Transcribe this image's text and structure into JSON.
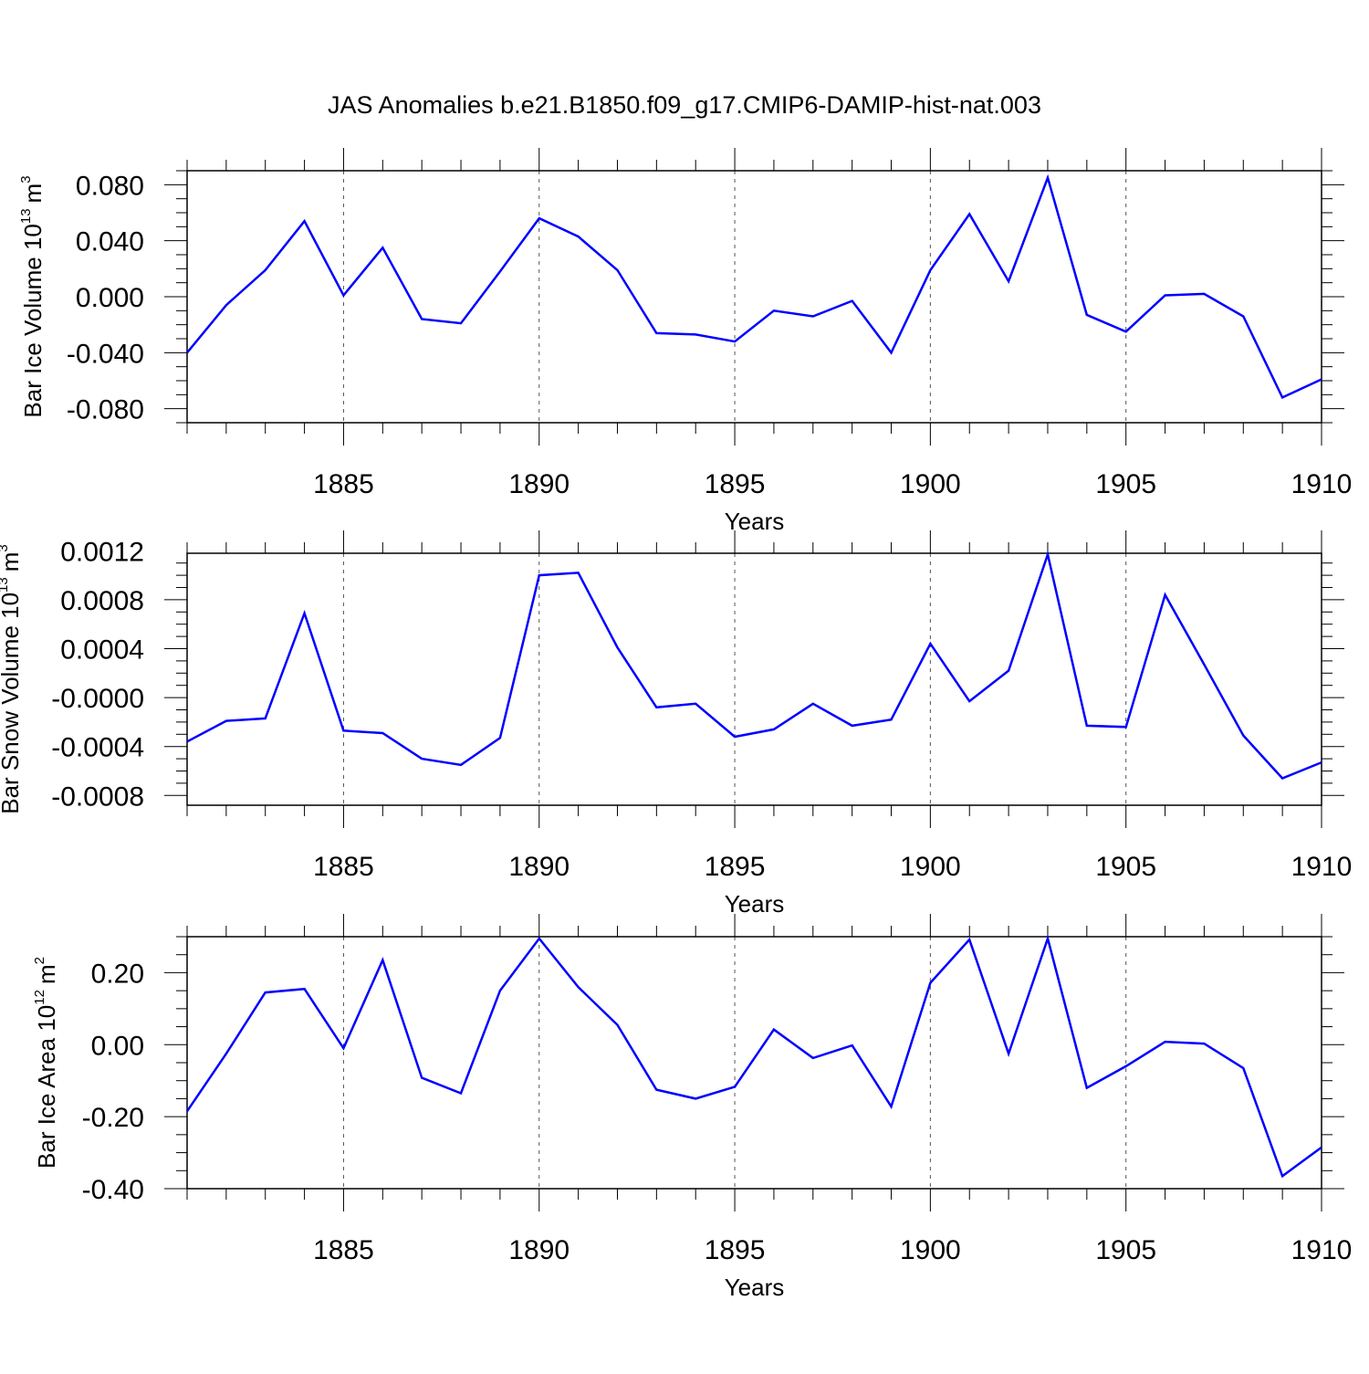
{
  "chart_data": [
    {
      "type": "line",
      "title": "JAS Anomalies b.e21.B1850.f09_g17.CMIP6-DAMIP-hist-nat.003",
      "xlabel": "Years",
      "ylabel": "Bar Ice Volume 10",
      "ylabel_exp": "13",
      "ylabel_unit": "m",
      "ylabel_unit_exp": "3",
      "xlim": [
        1881,
        1910
      ],
      "ylim": [
        -0.09,
        0.09
      ],
      "xticks": [
        1885,
        1890,
        1895,
        1900,
        1905,
        1910
      ],
      "xtick_labels": [
        "1885",
        "1890",
        "1895",
        "1900",
        "1905",
        "1910"
      ],
      "yticks": [
        -0.08,
        -0.04,
        0.0,
        0.04,
        0.08
      ],
      "ytick_labels": [
        "-0.080",
        "-0.040",
        "0.000",
        "0.040",
        "0.080"
      ],
      "grid": "vertical dashed at major x ticks",
      "line_color": "#0000ff",
      "series": [
        {
          "name": "Bar Ice Volume",
          "x": [
            1881,
            1882,
            1883,
            1884,
            1885,
            1886,
            1887,
            1888,
            1889,
            1890,
            1891,
            1892,
            1893,
            1894,
            1895,
            1896,
            1897,
            1898,
            1899,
            1900,
            1901,
            1902,
            1903,
            1904,
            1905,
            1906,
            1907,
            1908,
            1909,
            1910
          ],
          "values": [
            -0.04,
            -0.006,
            0.019,
            0.054,
            0.001,
            0.035,
            -0.016,
            -0.019,
            0.018,
            0.056,
            0.043,
            0.019,
            -0.026,
            -0.027,
            -0.032,
            -0.01,
            -0.014,
            -0.003,
            -0.04,
            0.019,
            0.059,
            0.011,
            0.085,
            -0.013,
            -0.025,
            0.001,
            0.002,
            -0.014,
            -0.072,
            -0.059
          ]
        }
      ]
    },
    {
      "type": "line",
      "xlabel": "Years",
      "ylabel": "Bar Snow Volume 10",
      "ylabel_exp": "13",
      "ylabel_unit": "m",
      "ylabel_unit_exp": "3",
      "xlim": [
        1881,
        1910
      ],
      "ylim": [
        -0.00088,
        0.00118
      ],
      "xticks": [
        1885,
        1890,
        1895,
        1900,
        1905,
        1910
      ],
      "xtick_labels": [
        "1885",
        "1890",
        "1895",
        "1900",
        "1905",
        "1910"
      ],
      "yticks": [
        -0.0008,
        -0.0004,
        0.0,
        0.0004,
        0.0008,
        0.0012
      ],
      "ytick_labels": [
        "-0.0008",
        "-0.0004",
        "-0.0000",
        "0.0004",
        "0.0008",
        "0.0012"
      ],
      "grid": "vertical dashed at major x ticks",
      "line_color": "#0000ff",
      "series": [
        {
          "name": "Bar Snow Volume",
          "x": [
            1881,
            1882,
            1883,
            1884,
            1885,
            1886,
            1887,
            1888,
            1889,
            1890,
            1891,
            1892,
            1893,
            1894,
            1895,
            1896,
            1897,
            1898,
            1899,
            1900,
            1901,
            1902,
            1903,
            1904,
            1905,
            1906,
            1907,
            1908,
            1909,
            1910
          ],
          "values": [
            -0.00036,
            -0.00019,
            -0.00017,
            0.00069,
            -0.00027,
            -0.00029,
            -0.0005,
            -0.00055,
            -0.00033,
            0.001,
            0.00102,
            0.00041,
            -8e-05,
            -5e-05,
            -0.00032,
            -0.00026,
            -5e-05,
            -0.00023,
            -0.00018,
            0.00044,
            -3e-05,
            0.00022,
            0.00117,
            -0.00023,
            -0.00024,
            0.00084,
            0.00027,
            -0.00031,
            -0.00066,
            -0.00053
          ]
        }
      ]
    },
    {
      "type": "line",
      "xlabel": "Years",
      "ylabel": "Bar Ice Area 10",
      "ylabel_exp": "12",
      "ylabel_unit": "m",
      "ylabel_unit_exp": "2",
      "xlim": [
        1881,
        1910
      ],
      "ylim": [
        -0.4,
        0.3
      ],
      "xticks": [
        1885,
        1890,
        1895,
        1900,
        1905,
        1910
      ],
      "xtick_labels": [
        "1885",
        "1890",
        "1895",
        "1900",
        "1905",
        "1910"
      ],
      "yticks": [
        -0.4,
        -0.2,
        0.0,
        0.2
      ],
      "ytick_labels": [
        "-0.40",
        "-0.20",
        "0.00",
        "0.20"
      ],
      "grid": "vertical dashed at major x ticks",
      "line_color": "#0000ff",
      "series": [
        {
          "name": "Bar Ice Area",
          "x": [
            1881,
            1882,
            1883,
            1884,
            1885,
            1886,
            1887,
            1888,
            1889,
            1890,
            1891,
            1892,
            1893,
            1894,
            1895,
            1896,
            1897,
            1898,
            1899,
            1900,
            1901,
            1902,
            1903,
            1904,
            1905,
            1906,
            1907,
            1908,
            1909,
            1910
          ],
          "values": [
            -0.185,
            -0.025,
            0.145,
            0.155,
            -0.01,
            0.235,
            -0.092,
            -0.135,
            0.15,
            0.295,
            0.16,
            0.055,
            -0.125,
            -0.15,
            -0.117,
            0.042,
            -0.037,
            -0.002,
            -0.172,
            0.172,
            0.292,
            -0.025,
            0.295,
            -0.12,
            -0.06,
            0.008,
            0.003,
            -0.065,
            -0.365,
            -0.285
          ]
        }
      ]
    }
  ]
}
